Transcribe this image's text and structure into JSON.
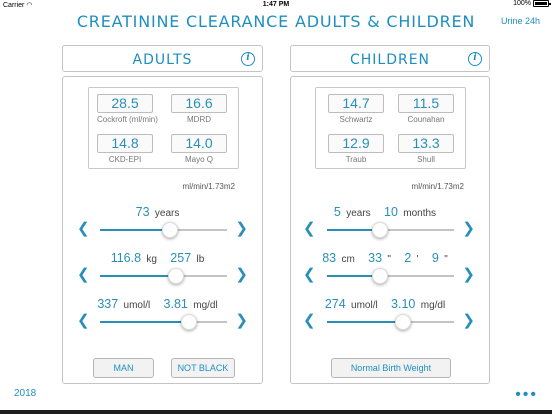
{
  "status": {
    "carrier": "Carrier",
    "time": "1:47 PM",
    "battery": "100%"
  },
  "app": {
    "title": "CREATININE CLEARANCE ADULTS & CHILDREN",
    "urine_link": "Urine 24h",
    "year": "2018"
  },
  "adults": {
    "title": "ADULTS",
    "results": [
      {
        "value": "28.5",
        "label": "Cockroft (ml/min)"
      },
      {
        "value": "16.6",
        "label": "MDRD"
      },
      {
        "value": "14.8",
        "label": "CKD-EPI"
      },
      {
        "value": "14.0",
        "label": "Mayo Q"
      }
    ],
    "unit": "ml/min/1.73m2",
    "age": {
      "value": "73",
      "unit": "years",
      "level": 0.55
    },
    "weight": {
      "kg": "116.8",
      "kg_unit": "kg",
      "lb": "257",
      "lb_unit": "lb",
      "level": 0.6
    },
    "creatinine": {
      "umol": "337",
      "umol_unit": "umol/l",
      "mgdl": "3.81",
      "mgdl_unit": "mg/dl",
      "level": 0.7
    },
    "sex_button": "MAN",
    "race_button": "NOT BLACK"
  },
  "children": {
    "title": "CHILDREN",
    "results": [
      {
        "value": "14.7",
        "label": "Schwartz"
      },
      {
        "value": "11.5",
        "label": "Counahan"
      },
      {
        "value": "12.9",
        "label": "Traub"
      },
      {
        "value": "13.3",
        "label": "Shull"
      }
    ],
    "unit": "ml/min/1.73m2",
    "age": {
      "years": "5",
      "years_unit": "years",
      "months": "10",
      "months_unit": "months",
      "level": 0.42
    },
    "height": {
      "cm": "83",
      "cm_unit": "cm",
      "inches": "33",
      "inch_mark": "\"",
      "feet": "2",
      "feet_mark": "'",
      "rem_inches": "9",
      "rem_mark": "\"",
      "level": 0.42
    },
    "creatinine": {
      "umol": "274",
      "umol_unit": "umol/l",
      "mgdl": "3.10",
      "mgdl_unit": "mg/dl",
      "level": 0.6
    },
    "birth_button": "Normal Birth Weight"
  },
  "icons": {
    "info": "i",
    "left": "❮",
    "right": "❯",
    "more": "•••"
  },
  "colors": {
    "accent": "#1e8fc0",
    "track": "#c4c4c4"
  }
}
